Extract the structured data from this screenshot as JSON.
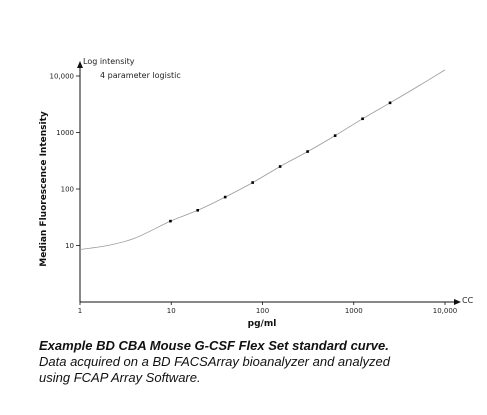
{
  "chart_data": {
    "type": "scatter",
    "ylabel": "Median Fluorescence Intensity",
    "xlabel": "pg/ml",
    "y_axis_caption": "Log intensity",
    "x_axis_caption": "CC",
    "fit_label": "4 parameter logistic",
    "x_scale": "log",
    "y_scale": "log",
    "xlim": [
      1,
      10000
    ],
    "ylim": [
      1,
      10000
    ],
    "x_ticks": [
      {
        "value": 1,
        "label": "1"
      },
      {
        "value": 10,
        "label": "10"
      },
      {
        "value": 100,
        "label": "100"
      },
      {
        "value": 1000,
        "label": "1000"
      },
      {
        "value": 10000,
        "label": "10,000"
      }
    ],
    "y_ticks": [
      {
        "value": 10,
        "label": "10"
      },
      {
        "value": 100,
        "label": "100"
      },
      {
        "value": 1000,
        "label": "1000"
      },
      {
        "value": 10000,
        "label": "10,000"
      }
    ],
    "grid": false,
    "points": [
      {
        "x": 9.8,
        "y": 27
      },
      {
        "x": 19.5,
        "y": 42
      },
      {
        "x": 39,
        "y": 72
      },
      {
        "x": 78,
        "y": 130
      },
      {
        "x": 156,
        "y": 250
      },
      {
        "x": 312,
        "y": 460
      },
      {
        "x": 625,
        "y": 880
      },
      {
        "x": 1250,
        "y": 1750
      },
      {
        "x": 2500,
        "y": 3350
      }
    ],
    "curve": [
      {
        "x": 1,
        "y": 8.5
      },
      {
        "x": 2,
        "y": 10
      },
      {
        "x": 4,
        "y": 13.5
      },
      {
        "x": 9.8,
        "y": 27
      },
      {
        "x": 19.5,
        "y": 42
      },
      {
        "x": 39,
        "y": 72
      },
      {
        "x": 78,
        "y": 130
      },
      {
        "x": 156,
        "y": 250
      },
      {
        "x": 312,
        "y": 460
      },
      {
        "x": 625,
        "y": 880
      },
      {
        "x": 1250,
        "y": 1750
      },
      {
        "x": 2500,
        "y": 3350
      },
      {
        "x": 5000,
        "y": 6500
      },
      {
        "x": 10000,
        "y": 12800
      }
    ],
    "colors": {
      "axis": "#111111",
      "curve": "#9a9a9a",
      "points": "#000000"
    }
  },
  "caption": {
    "title": "Example BD CBA Mouse G-CSF Flex Set standard curve.",
    "line1": "Data acquired on a BD FACSArray bioanalyzer and analyzed",
    "line2": "using FCAP Array Software."
  }
}
